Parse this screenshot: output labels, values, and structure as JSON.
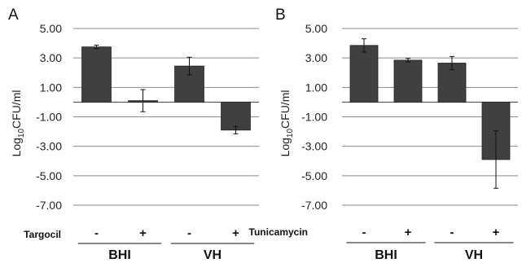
{
  "chart_data": [
    {
      "type": "bar",
      "panel_label": "A",
      "ylabel": "Log10CFU/ml",
      "ylabel_base": "Log",
      "ylabel_sub": "10",
      "ylabel_rest": "CFU/ml",
      "ylim": [
        -7,
        5
      ],
      "yticks": [
        5,
        3,
        1,
        -1,
        -3,
        -5,
        -7
      ],
      "ytick_labels": [
        "5.00",
        "3.00",
        "1.00",
        "-1.00",
        "-3.00",
        "-5.00",
        "-7.00"
      ],
      "grid": true,
      "treatment": "Targocil",
      "categories": [
        "-",
        "+",
        "-",
        "+"
      ],
      "groups": [
        {
          "label": "BHI",
          "span": [
            0,
            1
          ]
        },
        {
          "label": "VH",
          "span": [
            2,
            3
          ]
        }
      ],
      "values": [
        3.75,
        0.1,
        2.45,
        -1.9
      ],
      "errors": [
        0.12,
        0.75,
        0.6,
        0.25
      ],
      "bar_color": "#404040"
    },
    {
      "type": "bar",
      "panel_label": "B",
      "ylabel": "Log10CFU/ml",
      "ylabel_base": "Log",
      "ylabel_sub": "10",
      "ylabel_rest": "CFU/ml",
      "ylim": [
        -7,
        5
      ],
      "yticks": [
        5,
        3,
        1,
        -1,
        -3,
        -5,
        -7
      ],
      "ytick_labels": [
        "5.00",
        "3.00",
        "1.00",
        "-1.00",
        "-3.00",
        "-5.00",
        "-7.00"
      ],
      "grid": true,
      "treatment": "Tunicamycin",
      "categories": [
        "-",
        "+",
        "-",
        "+"
      ],
      "groups": [
        {
          "label": "BHI",
          "span": [
            0,
            1
          ]
        },
        {
          "label": "VH",
          "span": [
            2,
            3
          ]
        }
      ],
      "values": [
        3.85,
        2.85,
        2.65,
        -3.9
      ],
      "errors": [
        0.45,
        0.12,
        0.45,
        1.95
      ],
      "bar_color": "#404040"
    }
  ]
}
